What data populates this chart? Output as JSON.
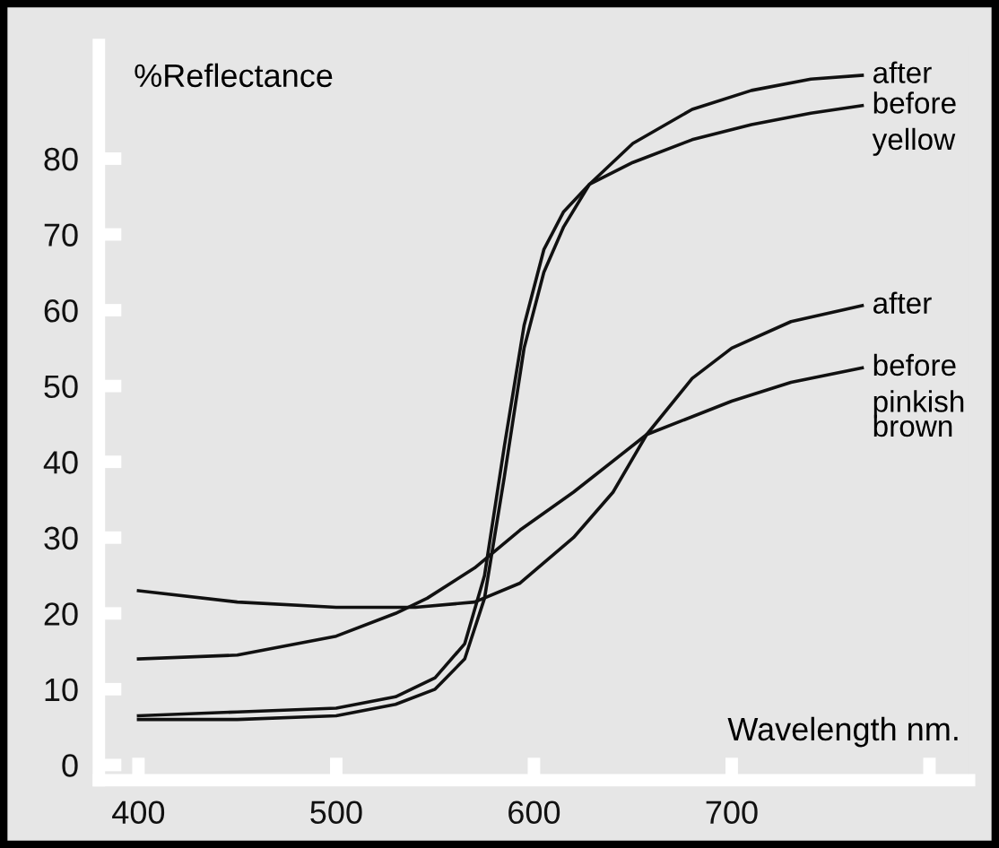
{
  "chart_data": {
    "type": "line",
    "xlabel": "Wavelength nm.",
    "ylabel": "%Reflectance",
    "xlim": [
      380,
      820
    ],
    "ylim": [
      -2,
      95
    ],
    "xticks": [
      400,
      500,
      600,
      700,
      {
        "value": 800,
        "label": null
      }
    ],
    "yticks": [
      0,
      10,
      20,
      30,
      40,
      50,
      60,
      70,
      80
    ],
    "grid": false,
    "legend": false,
    "marker": "none",
    "line_style": "solid",
    "series": [
      {
        "name": "after",
        "color": "#111111",
        "x": [
          400,
          450,
          500,
          530,
          550,
          565,
          575,
          585,
          595,
          605,
          615,
          628,
          650,
          680,
          710,
          740,
          766
        ],
        "values": [
          6,
          6,
          6.5,
          8,
          10,
          14,
          22,
          38,
          55,
          65,
          71,
          76.6,
          82,
          86.5,
          89,
          90.5,
          91
        ]
      },
      {
        "name": "before",
        "color": "#111111",
        "x": [
          400,
          450,
          500,
          530,
          550,
          565,
          575,
          585,
          595,
          605,
          615,
          628,
          650,
          680,
          710,
          740,
          766
        ],
        "values": [
          6.5,
          7,
          7.5,
          9,
          11.5,
          16,
          25,
          42,
          58,
          68,
          73,
          76.6,
          79.5,
          82.5,
          84.5,
          86,
          87
        ]
      },
      {
        "name": "after",
        "color": "#111111",
        "x": [
          400,
          450,
          500,
          540,
          570,
          593,
          620,
          640,
          657,
          680,
          700,
          730,
          766
        ],
        "values": [
          23,
          21.5,
          20.8,
          20.8,
          21.5,
          24,
          30,
          36,
          43.6,
          51,
          55,
          58.5,
          60.6
        ]
      },
      {
        "name": "before",
        "color": "#111111",
        "x": [
          400,
          450,
          500,
          530,
          546,
          570,
          593,
          620,
          657,
          700,
          730,
          766
        ],
        "values": [
          14,
          14.5,
          17,
          20,
          22,
          26,
          31,
          36,
          43.6,
          48,
          50.5,
          52.4
        ]
      }
    ],
    "annotations": [
      "yellow",
      "pinkish\nbrown"
    ]
  }
}
